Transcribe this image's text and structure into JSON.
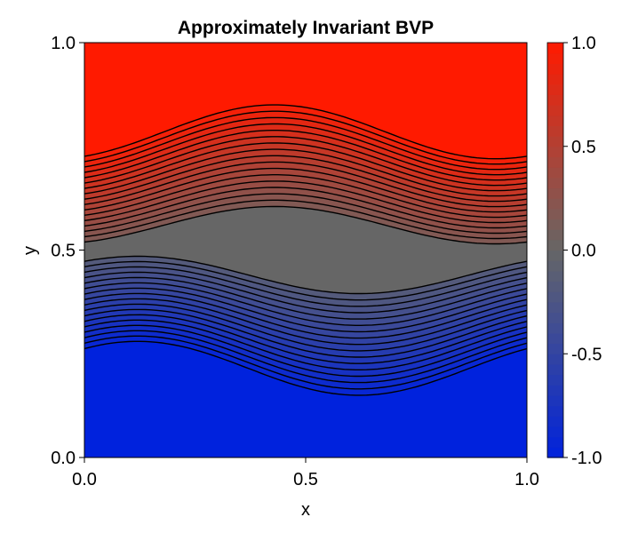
{
  "chart_data": {
    "type": "contour",
    "title": "Approximately Invariant BVP",
    "xlabel": "x",
    "ylabel": "y",
    "xlim": [
      0.0,
      1.0
    ],
    "ylim": [
      0.0,
      1.0
    ],
    "x_ticks": [
      "0.0",
      "0.5",
      "1.0"
    ],
    "y_ticks": [
      "0.0",
      "0.5",
      "1.0"
    ],
    "colorbar": {
      "range": [
        -1.0,
        1.0
      ],
      "ticks": [
        "1.0",
        "0.5",
        "0.0",
        "-0.5",
        "-1.0"
      ],
      "colormap": [
        "#0022dd",
        "#666666",
        "#ff1a00"
      ]
    },
    "contour_levels": [
      -0.95,
      -0.9,
      -0.85,
      -0.8,
      -0.75,
      -0.7,
      -0.65,
      -0.6,
      -0.55,
      -0.5,
      -0.45,
      -0.4,
      -0.35,
      -0.3,
      -0.25,
      -0.2,
      -0.15,
      0.15,
      0.2,
      0.25,
      0.3,
      0.35,
      0.4,
      0.45,
      0.5,
      0.55,
      0.6,
      0.65,
      0.7,
      0.75,
      0.8,
      0.85,
      0.9,
      0.95
    ],
    "contour_line_color": "#000000",
    "colors": {
      "high": "#ff1a00",
      "mid": "#666666",
      "low": "#0022dd"
    }
  }
}
